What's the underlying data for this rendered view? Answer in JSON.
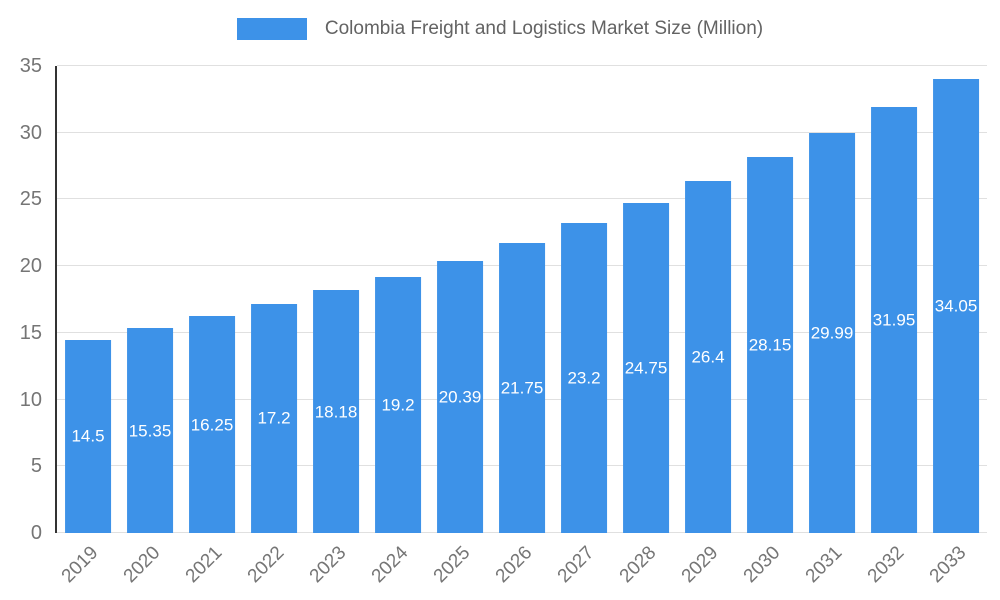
{
  "colors": {
    "bar": "#3d92e8",
    "grid": "#e0e0e0",
    "axis": "#333333",
    "tick_text": "#757575",
    "title_text": "#636363",
    "value_text": "#ffffff"
  },
  "chart_data": {
    "type": "bar",
    "title": "Colombia Freight and Logistics Market Size (Million)",
    "categories": [
      "2019",
      "2020",
      "2021",
      "2022",
      "2023",
      "2024",
      "2025",
      "2026",
      "2027",
      "2028",
      "2029",
      "2030",
      "2031",
      "2032",
      "2033"
    ],
    "values": [
      14.5,
      15.35,
      16.25,
      17.2,
      18.18,
      19.2,
      20.39,
      21.75,
      23.2,
      24.75,
      26.4,
      28.15,
      29.99,
      31.95,
      34.05
    ],
    "xlabel": "",
    "ylabel": "",
    "ylim": [
      0,
      35
    ],
    "yticks": [
      0,
      5,
      10,
      15,
      20,
      25,
      30,
      35
    ],
    "grid": true,
    "legend_position": "top",
    "value_label_position": "inside-middle"
  }
}
